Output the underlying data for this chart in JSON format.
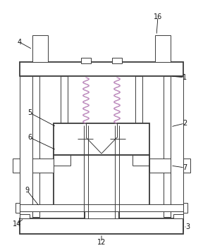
{
  "fig_width": 2.88,
  "fig_height": 3.52,
  "dpi": 100,
  "bg_color": "#ffffff",
  "line_color": "#3a3a3a",
  "lw": 0.7,
  "lw_thick": 1.3,
  "spring_color": "#c090c0"
}
